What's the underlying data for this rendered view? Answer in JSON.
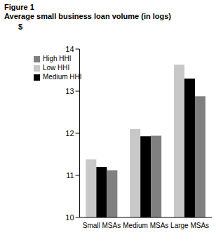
{
  "chart_data": {
    "type": "bar",
    "title": "Figure 1",
    "subtitle": "Average small business loan volume (in logs)",
    "y_label": "$",
    "categories": [
      "Small MSAs",
      "Medium MSAs",
      "Large MSAs"
    ],
    "series": [
      {
        "name": "Low HHI",
        "color": "#c8c8c8",
        "values": [
          11.38,
          12.1,
          13.63
        ]
      },
      {
        "name": "Medium HHI",
        "color": "#000000",
        "values": [
          11.2,
          11.93,
          13.3
        ]
      },
      {
        "name": "High HHI",
        "color": "#808080",
        "values": [
          11.12,
          11.94,
          12.88
        ]
      }
    ],
    "ylim": [
      10,
      14
    ],
    "yticks": [
      10,
      11,
      12,
      13,
      14
    ],
    "grid": false,
    "legend": "upper left"
  }
}
